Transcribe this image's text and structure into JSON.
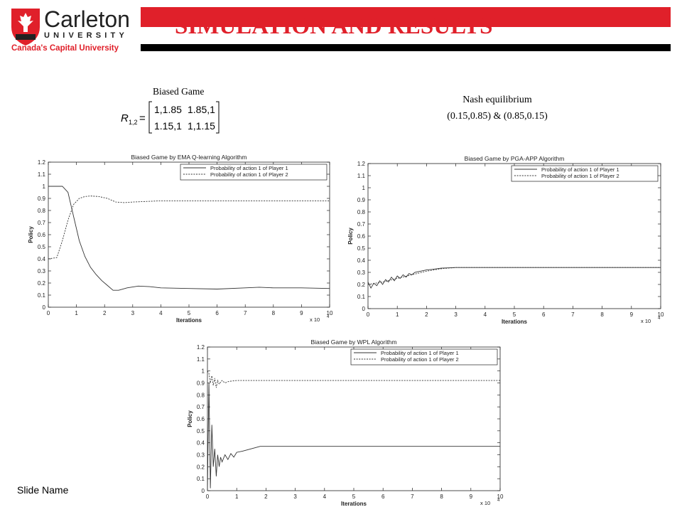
{
  "header": {
    "title": "SIMULATION AND RESULTS",
    "logo_text": "Carleton",
    "logo_sub": "UNIVERSITY",
    "logo_tagline": "Canada's Capital University",
    "brand_red": "#e0202a"
  },
  "game": {
    "label": "Biased Game",
    "matrix_symbol": "R",
    "matrix_subscript": "1,2",
    "matrix": [
      [
        "1,1.85",
        "1.85,1"
      ],
      [
        "1.15,1",
        "1,1.15"
      ]
    ]
  },
  "nash": {
    "label": "Nash equilibrium",
    "value": "(0.15,0.85) & (0.85,0.15)"
  },
  "footer": {
    "slide_name": "Slide Name"
  },
  "chart_data": [
    {
      "type": "line",
      "title": "Biased Game by EMA Q-learning Algorithm",
      "xlabel": "Iterations",
      "ylabel": "Policy",
      "x_multiplier": "x 10",
      "x_exponent": "4",
      "xlim": [
        0,
        10
      ],
      "ylim": [
        0,
        1.2
      ],
      "xticks": [
        "0",
        "1",
        "2",
        "3",
        "4",
        "5",
        "6",
        "7",
        "8",
        "9",
        "10"
      ],
      "yticks": [
        "0",
        "0.1",
        "0.2",
        "0.3",
        "0.4",
        "0.5",
        "0.6",
        "0.7",
        "0.8",
        "0.9",
        "1",
        "1.1",
        "1.2"
      ],
      "legend_position": "top-right",
      "series": [
        {
          "name": "Probability of action 1 of Player 1",
          "style": "solid",
          "x": [
            0,
            0.5,
            0.7,
            0.9,
            1.1,
            1.3,
            1.5,
            1.7,
            1.9,
            2.1,
            2.3,
            2.5,
            2.8,
            3.2,
            3.6,
            4,
            5,
            6,
            7,
            7.5,
            8,
            9,
            10
          ],
          "y": [
            1,
            1,
            0.95,
            0.75,
            0.55,
            0.42,
            0.33,
            0.27,
            0.22,
            0.18,
            0.14,
            0.14,
            0.16,
            0.175,
            0.17,
            0.16,
            0.155,
            0.15,
            0.16,
            0.165,
            0.16,
            0.16,
            0.155
          ]
        },
        {
          "name": "Probability of action 1 of Player 2",
          "style": "dashed",
          "x": [
            0,
            0.3,
            0.5,
            0.7,
            0.9,
            1.1,
            1.3,
            1.5,
            1.8,
            2.1,
            2.4,
            2.7,
            3,
            4,
            5,
            6,
            7,
            8,
            9,
            10
          ],
          "y": [
            0.4,
            0.41,
            0.55,
            0.72,
            0.85,
            0.9,
            0.915,
            0.92,
            0.915,
            0.9,
            0.87,
            0.865,
            0.87,
            0.88,
            0.88,
            0.88,
            0.88,
            0.88,
            0.88,
            0.88
          ]
        }
      ]
    },
    {
      "type": "line",
      "title": "Biased Game by PGA-APP Algorithm",
      "xlabel": "Iterations",
      "ylabel": "Policy",
      "x_multiplier": "x 10",
      "x_exponent": "4",
      "xlim": [
        0,
        10
      ],
      "ylim": [
        0,
        1.2
      ],
      "xticks": [
        "0",
        "1",
        "2",
        "3",
        "4",
        "5",
        "6",
        "7",
        "8",
        "9",
        "10"
      ],
      "yticks": [
        "0",
        "0.1",
        "0.2",
        "0.3",
        "0.4",
        "0.5",
        "0.6",
        "0.7",
        "0.8",
        "0.9",
        "1",
        "1.1",
        "1.2"
      ],
      "legend_position": "top-right",
      "series": [
        {
          "name": "Probability of action 1 of Player 1",
          "style": "solid",
          "x": [
            0,
            0.1,
            0.2,
            0.3,
            0.4,
            0.5,
            0.6,
            0.7,
            0.8,
            0.9,
            1,
            1.1,
            1.2,
            1.3,
            1.4,
            1.5,
            1.6,
            1.8,
            2,
            2.2,
            2.5,
            3,
            4,
            6,
            8,
            10
          ],
          "y": [
            0.22,
            0.17,
            0.21,
            0.19,
            0.23,
            0.2,
            0.24,
            0.22,
            0.26,
            0.23,
            0.27,
            0.25,
            0.28,
            0.26,
            0.29,
            0.28,
            0.3,
            0.31,
            0.32,
            0.325,
            0.335,
            0.34,
            0.34,
            0.34,
            0.34,
            0.34
          ]
        },
        {
          "name": "Probability of action 1 of Player 2",
          "style": "dashed",
          "x": [
            0,
            0.5,
            1,
            1.5,
            2,
            2.5,
            3,
            4,
            6,
            8,
            10
          ],
          "y": [
            0.2,
            0.22,
            0.25,
            0.28,
            0.31,
            0.33,
            0.34,
            0.34,
            0.34,
            0.34,
            0.34
          ]
        }
      ]
    },
    {
      "type": "line",
      "title": "Biased Game by WPL Algorithm",
      "xlabel": "Iterations",
      "ylabel": "Policy",
      "x_multiplier": "x 10",
      "x_exponent": "4",
      "xlim": [
        0,
        10
      ],
      "ylim": [
        0,
        1.2
      ],
      "xticks": [
        "0",
        "1",
        "2",
        "3",
        "4",
        "5",
        "6",
        "7",
        "8",
        "9",
        "10"
      ],
      "yticks": [
        "0",
        "0.1",
        "0.2",
        "0.3",
        "0.4",
        "0.5",
        "0.6",
        "0.7",
        "0.8",
        "0.9",
        "1",
        "1.1",
        "1.2"
      ],
      "legend_position": "top-right",
      "series": [
        {
          "name": "Probability of action 1 of Player 1",
          "style": "solid",
          "x": [
            0,
            0.05,
            0.1,
            0.15,
            0.2,
            0.25,
            0.3,
            0.35,
            0.4,
            0.45,
            0.5,
            0.6,
            0.7,
            0.8,
            0.9,
            1,
            1.2,
            1.5,
            1.8,
            2,
            3,
            5,
            7,
            10
          ],
          "y": [
            0,
            0.9,
            0.02,
            0.55,
            0.2,
            0.35,
            0.12,
            0.3,
            0.2,
            0.28,
            0.24,
            0.3,
            0.26,
            0.31,
            0.28,
            0.32,
            0.33,
            0.35,
            0.37,
            0.37,
            0.37,
            0.37,
            0.37,
            0.37
          ]
        },
        {
          "name": "Probability of action 1 of Player 2",
          "style": "dashed",
          "x": [
            0,
            0.05,
            0.1,
            0.15,
            0.2,
            0.25,
            0.3,
            0.35,
            0.4,
            0.5,
            0.6,
            0.7,
            0.8,
            1,
            2,
            4,
            6,
            8,
            10
          ],
          "y": [
            1,
            0.98,
            0.9,
            0.96,
            0.88,
            0.94,
            0.86,
            0.92,
            0.89,
            0.92,
            0.9,
            0.91,
            0.915,
            0.92,
            0.92,
            0.92,
            0.92,
            0.92,
            0.92
          ]
        }
      ]
    }
  ]
}
